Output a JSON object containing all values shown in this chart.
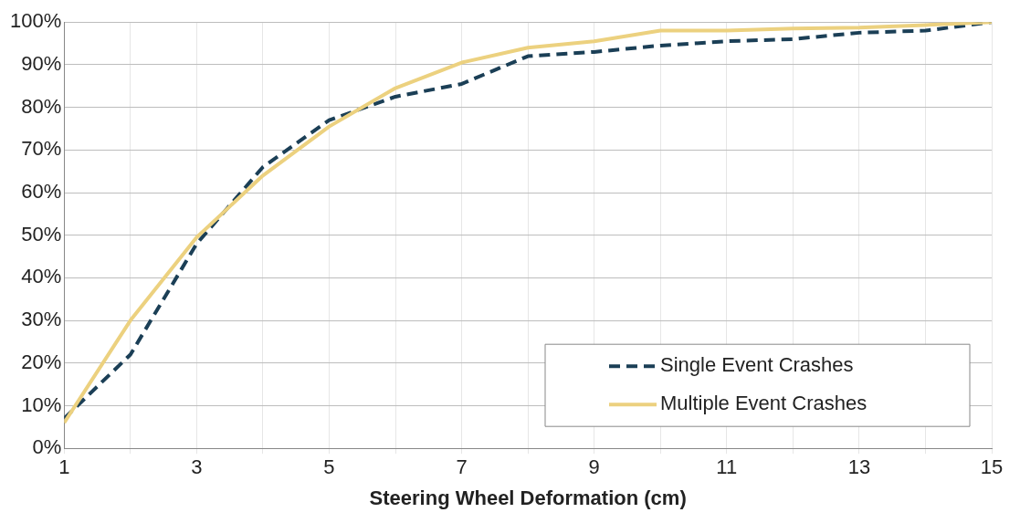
{
  "chart_data": {
    "type": "line",
    "xlabel": "Steering Wheel Deformation (cm)",
    "x": [
      1,
      2,
      3,
      4,
      5,
      6,
      7,
      8,
      9,
      10,
      11,
      12,
      13,
      14,
      15
    ],
    "series": [
      {
        "name": "Single Event Crashes",
        "color": "#1b3f56",
        "line_style": "dashed",
        "values": [
          7,
          22,
          48,
          66,
          77,
          82.5,
          85.5,
          92,
          93,
          94.5,
          95.5,
          96,
          97.5,
          98,
          100
        ]
      },
      {
        "name": "Multiple Event Crashes",
        "color": "#ecd17f",
        "line_style": "solid",
        "values": [
          6,
          30,
          49.5,
          64,
          75.5,
          84.5,
          90.5,
          94,
          95.5,
          98,
          98,
          98.5,
          98.7,
          99.3,
          100
        ]
      }
    ],
    "xlim": [
      1,
      15
    ],
    "xticks": [
      1,
      {
        "value": 2,
        "label": null
      },
      3,
      {
        "value": 4,
        "label": null
      },
      5,
      {
        "value": 6,
        "label": null
      },
      7,
      {
        "value": 8,
        "label": null
      },
      9,
      {
        "value": 10,
        "label": null
      },
      11,
      {
        "value": 12,
        "label": null
      },
      13,
      {
        "value": 14,
        "label": null
      },
      15
    ],
    "ylim": [
      0,
      100
    ],
    "yticks": [
      {
        "value": 0,
        "label": "0%"
      },
      {
        "value": 10,
        "label": "10%"
      },
      {
        "value": 20,
        "label": "20%"
      },
      {
        "value": 30,
        "label": "30%"
      },
      {
        "value": 40,
        "label": "40%"
      },
      {
        "value": 50,
        "label": "50%"
      },
      {
        "value": 60,
        "label": "60%"
      },
      {
        "value": 70,
        "label": "70%"
      },
      {
        "value": 80,
        "label": "80%"
      },
      {
        "value": 90,
        "label": "90%"
      },
      {
        "value": 100,
        "label": "100%"
      }
    ],
    "grid": true,
    "legend": "bottom right",
    "marker": "none"
  }
}
